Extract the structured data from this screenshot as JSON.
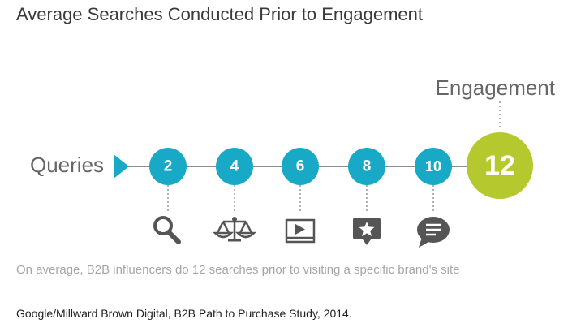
{
  "title": "Average Searches Conducted Prior to Engagement",
  "start_label": "Queries",
  "end_label": "Engagement",
  "steps": [
    {
      "value": "2",
      "icon": "search-icon"
    },
    {
      "value": "4",
      "icon": "scales-icon"
    },
    {
      "value": "6",
      "icon": "video-player-icon"
    },
    {
      "value": "8",
      "icon": "review-star-icon"
    },
    {
      "value": "10",
      "icon": "chat-bubble-icon"
    }
  ],
  "final_step": {
    "value": "12"
  },
  "caption": "On average, B2B influencers do 12 searches prior to visiting a specific brand's site",
  "source": "Google/Millward Brown Digital, B2B Path to Purchase Study, 2014.",
  "colors": {
    "node": "#17a9c6",
    "final_node": "#b5c82e",
    "icon": "#555555",
    "line": "#666666",
    "dotted": "#999999"
  }
}
